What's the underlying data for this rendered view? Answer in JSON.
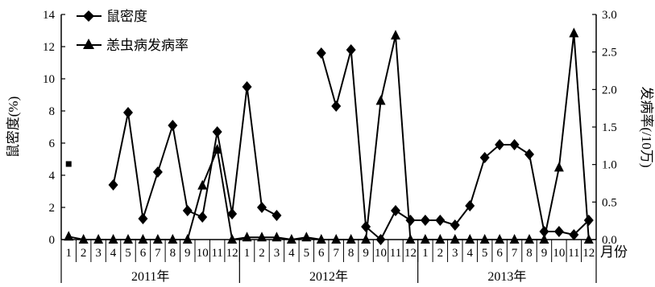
{
  "chart_data": {
    "type": "line",
    "title": "",
    "xlabel": "月份",
    "ylabel_left": "鼠密度(%)",
    "ylabel_right": "发病率(/10万)",
    "ylim_left": [
      0,
      14
    ],
    "ylim_right": [
      0,
      3.0
    ],
    "yticks_left": [
      "0",
      "2",
      "4",
      "6",
      "8",
      "10",
      "12",
      "14"
    ],
    "yticks_right": [
      "0.0",
      "0.5",
      "1.0",
      "1.5",
      "2.0",
      "2.5",
      "3.0"
    ],
    "months": [
      "1",
      "2",
      "3",
      "4",
      "5",
      "6",
      "7",
      "8",
      "9",
      "10",
      "11",
      "12",
      "1",
      "2",
      "3",
      "4",
      "5",
      "6",
      "7",
      "8",
      "9",
      "10",
      "11",
      "12",
      "1",
      "2",
      "3",
      "4",
      "5",
      "6",
      "7",
      "8",
      "9",
      "10",
      "11",
      "12"
    ],
    "years": [
      "2011年",
      "2012年",
      "2013年"
    ],
    "legend_position": "top-left",
    "series": [
      {
        "name": "鼠密度",
        "axis": "left",
        "marker": "diamond",
        "values": [
          4.7,
          null,
          null,
          3.4,
          7.9,
          1.3,
          4.2,
          7.1,
          1.8,
          1.4,
          6.7,
          1.6,
          9.5,
          2.0,
          1.5,
          null,
          null,
          11.6,
          8.3,
          11.8,
          0.8,
          0.0,
          1.8,
          1.2,
          1.2,
          1.2,
          0.9,
          2.1,
          5.1,
          5.9,
          5.9,
          5.3,
          0.5,
          0.5,
          0.3,
          1.2
        ]
      },
      {
        "name": "恙虫病发病率",
        "axis": "right",
        "marker": "triangle",
        "values": [
          0.04,
          0.0,
          0.0,
          0.0,
          0.0,
          0.0,
          0.0,
          0.0,
          0.0,
          0.72,
          1.2,
          0.0,
          0.03,
          0.03,
          0.03,
          0.0,
          0.03,
          0.0,
          0.0,
          0.0,
          0.0,
          1.85,
          2.72,
          0.0,
          0.0,
          0.0,
          0.0,
          0.0,
          0.0,
          0.0,
          0.0,
          0.0,
          0.0,
          0.96,
          2.75,
          0.0
        ]
      }
    ]
  }
}
